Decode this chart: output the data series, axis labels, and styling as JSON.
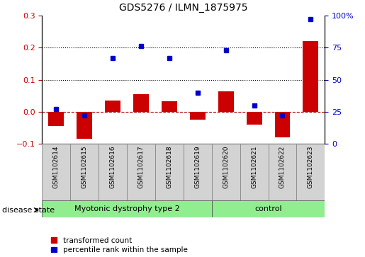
{
  "title": "GDS5276 / ILMN_1875975",
  "samples": [
    "GSM1102614",
    "GSM1102615",
    "GSM1102616",
    "GSM1102617",
    "GSM1102618",
    "GSM1102619",
    "GSM1102620",
    "GSM1102621",
    "GSM1102622",
    "GSM1102623"
  ],
  "transformed_count": [
    -0.045,
    -0.085,
    0.035,
    0.055,
    0.033,
    -0.025,
    0.063,
    -0.04,
    -0.08,
    0.22
  ],
  "percentile_rank": [
    27,
    22,
    67,
    76,
    67,
    40,
    73,
    30,
    22,
    97
  ],
  "disease_groups": [
    {
      "label": "Myotonic dystrophy type 2",
      "start": 0,
      "end": 6
    },
    {
      "label": "control",
      "start": 6,
      "end": 10
    }
  ],
  "ylim_left": [
    -0.1,
    0.3
  ],
  "ylim_right": [
    0,
    100
  ],
  "yticks_left": [
    -0.1,
    0.0,
    0.1,
    0.2,
    0.3
  ],
  "yticks_right": [
    0,
    25,
    50,
    75,
    100
  ],
  "bar_color": "#cc0000",
  "dot_color": "#0000cc",
  "grid_color": "#000000",
  "zero_line_color": "#aa0000",
  "bg_plot": "#ffffff",
  "bg_samples": "#d3d3d3",
  "bg_group": "#90ee90",
  "legend_red_label": "transformed count",
  "legend_blue_label": "percentile rank within the sample",
  "disease_label": "disease state",
  "bar_width": 0.55
}
